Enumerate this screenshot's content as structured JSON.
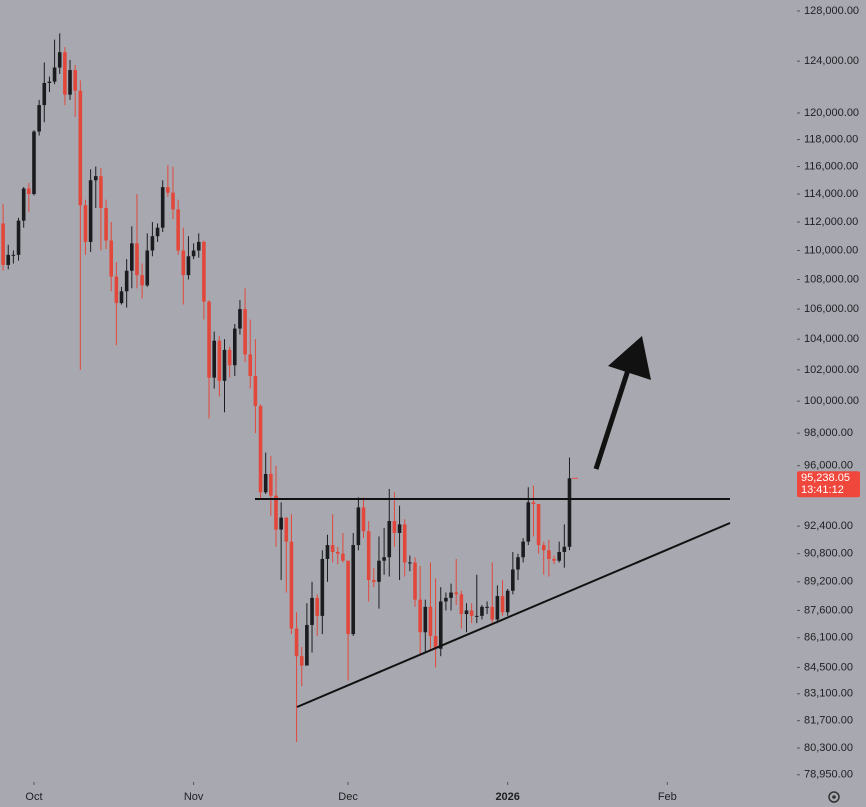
{
  "chart_data": {
    "type": "candlestick",
    "ylim": [
      78690,
      128890
    ],
    "log_scale": true,
    "xlim": [
      -0.6,
      153.8
    ],
    "xticks": [
      {
        "value": 6,
        "label": "Oct"
      },
      {
        "value": 37,
        "label": "Nov"
      },
      {
        "value": 67,
        "label": "Dec"
      },
      {
        "value": 98,
        "label": "2026"
      },
      {
        "value": 129,
        "label": "Feb"
      }
    ],
    "yticks": [
      {
        "value": 128000,
        "label": "128,000.00"
      },
      {
        "value": 124000,
        "label": "124,000.00"
      },
      {
        "value": 120000,
        "label": "120,000.00"
      },
      {
        "value": 118000,
        "label": "118,000.00"
      },
      {
        "value": 116000,
        "label": "116,000.00"
      },
      {
        "value": 114000,
        "label": "114,000.00"
      },
      {
        "value": 112000,
        "label": "112,000.00"
      },
      {
        "value": 110000,
        "label": "110,000.00"
      },
      {
        "value": 108000,
        "label": "108,000.00"
      },
      {
        "value": 106000,
        "label": "106,000.00"
      },
      {
        "value": 104000,
        "label": "104,000.00"
      },
      {
        "value": 102000,
        "label": "102,000.00"
      },
      {
        "value": 100000,
        "label": "100,000.00"
      },
      {
        "value": 98000,
        "label": "98,000.00"
      },
      {
        "value": 96000,
        "label": "96,000.00"
      },
      {
        "value": 92400,
        "label": "92,400.00"
      },
      {
        "value": 90800,
        "label": "90,800.00"
      },
      {
        "value": 89200,
        "label": "89,200.00"
      },
      {
        "value": 87600,
        "label": "87,600.00"
      },
      {
        "value": 86100,
        "label": "86,100.00"
      },
      {
        "value": 84500,
        "label": "84,500.00"
      },
      {
        "value": 83100,
        "label": "83,100.00"
      },
      {
        "value": 81700,
        "label": "81,700.00"
      },
      {
        "value": 80300,
        "label": "80,300.00"
      },
      {
        "value": 78950,
        "label": "78,950.00"
      }
    ],
    "up_color": "#1b1c20",
    "down_color": "#e2473b",
    "last_price": {
      "value": 95238.05,
      "label": "95,238.05"
    },
    "countdown": "13:41:12",
    "last_price_color": "#f0473c",
    "open": [
      111900,
      109000,
      109700,
      109700,
      112100,
      114400,
      114000,
      118600,
      120600,
      122300,
      122400,
      123500,
      124700,
      121400,
      123300,
      121700,
      113200,
      110600,
      115000,
      115300,
      113000,
      110700,
      108200,
      106400,
      107200,
      108600,
      110500,
      108300,
      107600,
      110000,
      111000,
      111600,
      114500,
      114100,
      112900,
      110000,
      108300,
      109600,
      110000,
      110600,
      106500,
      101500,
      103900,
      101300,
      103300,
      102300,
      104700,
      106000,
      103000,
      101600,
      99700,
      94400,
      95500,
      94200,
      92200,
      92900,
      91500,
      86600,
      85100,
      84600,
      86800,
      88300,
      87300,
      90500,
      91300,
      90900,
      90800,
      90400,
      86300,
      91300,
      93500,
      92100,
      89300,
      89200,
      90400,
      90600,
      92700,
      92000,
      92500,
      90300,
      90300,
      88200,
      86400,
      87800,
      86200,
      85500,
      88100,
      88300,
      88600,
      88500,
      87400,
      87600,
      87300,
      87300,
      87800,
      87800,
      87100,
      88400,
      87500,
      88700,
      89900,
      90600,
      91500,
      93800,
      93700,
      91300,
      91000,
      90500,
      90400,
      90900,
      91200
    ],
    "high": [
      113300,
      110400,
      110000,
      112300,
      114500,
      114800,
      118700,
      121000,
      123900,
      122800,
      125700,
      126200,
      125100,
      124100,
      123700,
      122500,
      113600,
      115800,
      116000,
      115900,
      113600,
      112000,
      109200,
      107500,
      109400,
      111700,
      114000,
      109100,
      111200,
      112000,
      111900,
      115000,
      116100,
      116000,
      113600,
      111600,
      111000,
      110500,
      111200,
      110700,
      106600,
      104500,
      104200,
      104000,
      103500,
      105000,
      106600,
      107400,
      105300,
      104000,
      99800,
      96800,
      96600,
      96000,
      93800,
      92900,
      93100,
      87500,
      85600,
      88000,
      89200,
      88500,
      91000,
      91900,
      93100,
      91200,
      92000,
      90400,
      92000,
      94100,
      94100,
      92700,
      90000,
      91800,
      92300,
      94600,
      94400,
      93600,
      92800,
      90700,
      90600,
      90100,
      88200,
      90300,
      89400,
      88900,
      88600,
      89100,
      90500,
      88700,
      88000,
      88000,
      89600,
      87900,
      88100,
      90300,
      89000,
      89300,
      88800,
      90900,
      90800,
      91700,
      94700,
      94800,
      93700,
      91500,
      91600,
      90700,
      91500,
      92500,
      96500
    ],
    "low": [
      108600,
      108700,
      109100,
      109300,
      111600,
      112700,
      113900,
      118300,
      119300,
      121600,
      122200,
      123000,
      120600,
      121000,
      119700,
      102000,
      109700,
      109900,
      113000,
      110000,
      110100,
      107200,
      103600,
      106300,
      106100,
      107400,
      107400,
      106700,
      107500,
      109600,
      110600,
      111300,
      113800,
      112200,
      109700,
      106300,
      108000,
      109400,
      109500,
      105300,
      98900,
      100800,
      100300,
      99300,
      101500,
      101600,
      104300,
      102500,
      100800,
      98000,
      94000,
      94300,
      93000,
      91200,
      89300,
      88600,
      86300,
      80600,
      83500,
      84600,
      85300,
      86200,
      86300,
      89200,
      90300,
      90200,
      90300,
      83800,
      86200,
      91000,
      91700,
      88100,
      88900,
      87700,
      89600,
      89500,
      91200,
      89300,
      89500,
      89800,
      87800,
      85200,
      85300,
      85400,
      84500,
      85100,
      87600,
      87600,
      87900,
      86600,
      86400,
      86900,
      86900,
      87100,
      87400,
      86800,
      86900,
      87300,
      87300,
      88500,
      89300,
      90300,
      91300,
      91800,
      90800,
      89600,
      89500,
      90200,
      90300,
      90000,
      91000
    ],
    "close": [
      109000,
      109700,
      109700,
      112100,
      114400,
      114000,
      118600,
      120600,
      122300,
      122400,
      123500,
      124700,
      121400,
      123300,
      121700,
      113200,
      110600,
      115000,
      115300,
      113000,
      110700,
      108200,
      106400,
      107200,
      108600,
      110500,
      108300,
      107600,
      110000,
      111000,
      111600,
      114500,
      114100,
      112900,
      110000,
      108300,
      109600,
      110000,
      110600,
      106500,
      101500,
      103900,
      101300,
      103300,
      102300,
      104700,
      106000,
      103000,
      101600,
      99700,
      94400,
      95500,
      94200,
      92200,
      92900,
      91500,
      86600,
      85100,
      84600,
      86800,
      88300,
      87300,
      90500,
      91300,
      90900,
      90800,
      90400,
      86300,
      91300,
      93500,
      92100,
      89300,
      89200,
      90400,
      90600,
      92700,
      92000,
      92500,
      90300,
      90300,
      88200,
      86400,
      87800,
      86200,
      85500,
      88100,
      88300,
      88600,
      88500,
      87400,
      87600,
      87300,
      87300,
      87800,
      87800,
      87100,
      88400,
      87500,
      88700,
      89900,
      90600,
      91500,
      93800,
      93700,
      91300,
      91000,
      90500,
      90400,
      90900,
      91200,
      95238.05
    ]
  }
}
